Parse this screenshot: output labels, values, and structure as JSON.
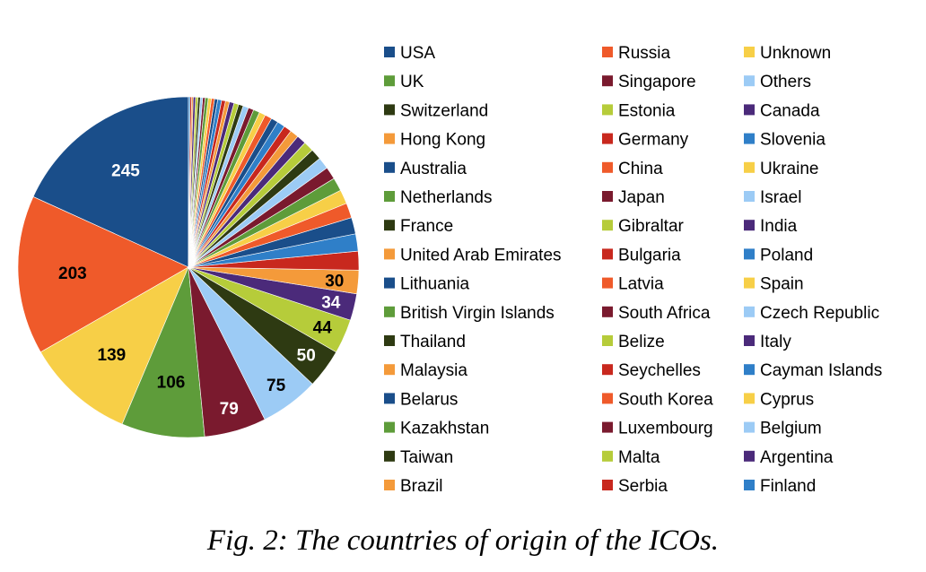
{
  "caption": "Fig. 2: The countries of origin of the ICOs.",
  "chart_data": {
    "type": "pie",
    "title": "",
    "palette": [
      "#1a4e8a",
      "#ef5a2a",
      "#f7cf47",
      "#5e9c3a",
      "#7a1a2e",
      "#9ccbf5",
      "#2e3a12",
      "#b6cc3a",
      "#4b2a7a",
      "#f49a3a",
      "#c8281e",
      "#2f7fc8"
    ],
    "slices": [
      {
        "label": "USA",
        "value": 245,
        "show_label": true,
        "label_color": "#ffffff"
      },
      {
        "label": "Russia",
        "value": 203,
        "show_label": true,
        "label_color": "#000000"
      },
      {
        "label": "Unknown",
        "value": 139,
        "show_label": true,
        "label_color": "#000000"
      },
      {
        "label": "UK",
        "value": 106,
        "show_label": true,
        "label_color": "#000000"
      },
      {
        "label": "Singapore",
        "value": 79,
        "show_label": true,
        "label_color": "#ffffff"
      },
      {
        "label": "Others",
        "value": 75,
        "show_label": true,
        "label_color": "#000000"
      },
      {
        "label": "Switzerland",
        "value": 50,
        "show_label": true,
        "label_color": "#ffffff"
      },
      {
        "label": "Estonia",
        "value": 44,
        "show_label": true,
        "label_color": "#000000"
      },
      {
        "label": "Canada",
        "value": 34,
        "show_label": true,
        "label_color": "#ffffff"
      },
      {
        "label": "Hong Kong",
        "value": 30,
        "show_label": true,
        "label_color": "#000000"
      },
      {
        "label": "Germany",
        "value": 24,
        "show_label": false
      },
      {
        "label": "Slovenia",
        "value": 22,
        "show_label": false
      },
      {
        "label": "Australia",
        "value": 21,
        "show_label": false
      },
      {
        "label": "China",
        "value": 19,
        "show_label": false
      },
      {
        "label": "Ukraine",
        "value": 18,
        "show_label": false
      },
      {
        "label": "Netherlands",
        "value": 17,
        "show_label": false
      },
      {
        "label": "Japan",
        "value": 16,
        "show_label": false
      },
      {
        "label": "Israel",
        "value": 15,
        "show_label": false
      },
      {
        "label": "France",
        "value": 14,
        "show_label": false
      },
      {
        "label": "Gibraltar",
        "value": 13,
        "show_label": false
      },
      {
        "label": "India",
        "value": 12,
        "show_label": false
      },
      {
        "label": "United Arab Emirates",
        "value": 11,
        "show_label": false
      },
      {
        "label": "Bulgaria",
        "value": 10,
        "show_label": false
      },
      {
        "label": "Poland",
        "value": 10,
        "show_label": false
      },
      {
        "label": "Lithuania",
        "value": 9,
        "show_label": false
      },
      {
        "label": "Latvia",
        "value": 9,
        "show_label": false
      },
      {
        "label": "Spain",
        "value": 8,
        "show_label": false
      },
      {
        "label": "British Virgin Islands",
        "value": 8,
        "show_label": false
      },
      {
        "label": "South Africa",
        "value": 7,
        "show_label": false
      },
      {
        "label": "Czech Republic",
        "value": 7,
        "show_label": false
      },
      {
        "label": "Thailand",
        "value": 6,
        "show_label": false
      },
      {
        "label": "Belize",
        "value": 6,
        "show_label": false
      },
      {
        "label": "Italy",
        "value": 6,
        "show_label": false
      },
      {
        "label": "Malaysia",
        "value": 5,
        "show_label": false
      },
      {
        "label": "Seychelles",
        "value": 5,
        "show_label": false
      },
      {
        "label": "Cayman Islands",
        "value": 5,
        "show_label": false
      },
      {
        "label": "Belarus",
        "value": 4,
        "show_label": false
      },
      {
        "label": "South Korea",
        "value": 4,
        "show_label": false
      },
      {
        "label": "Cyprus",
        "value": 4,
        "show_label": false
      },
      {
        "label": "Kazakhstan",
        "value": 4,
        "show_label": false
      },
      {
        "label": "Luxembourg",
        "value": 3,
        "show_label": false
      },
      {
        "label": "Belgium",
        "value": 3,
        "show_label": false
      },
      {
        "label": "Taiwan",
        "value": 3,
        "show_label": false
      },
      {
        "label": "Malta",
        "value": 3,
        "show_label": false
      },
      {
        "label": "Argentina",
        "value": 3,
        "show_label": false
      },
      {
        "label": "Brazil",
        "value": 2,
        "show_label": false
      },
      {
        "label": "Serbia",
        "value": 2,
        "show_label": false
      },
      {
        "label": "Finland",
        "value": 2,
        "show_label": false
      }
    ],
    "legend": {
      "placement": "right",
      "columns": 3
    }
  }
}
